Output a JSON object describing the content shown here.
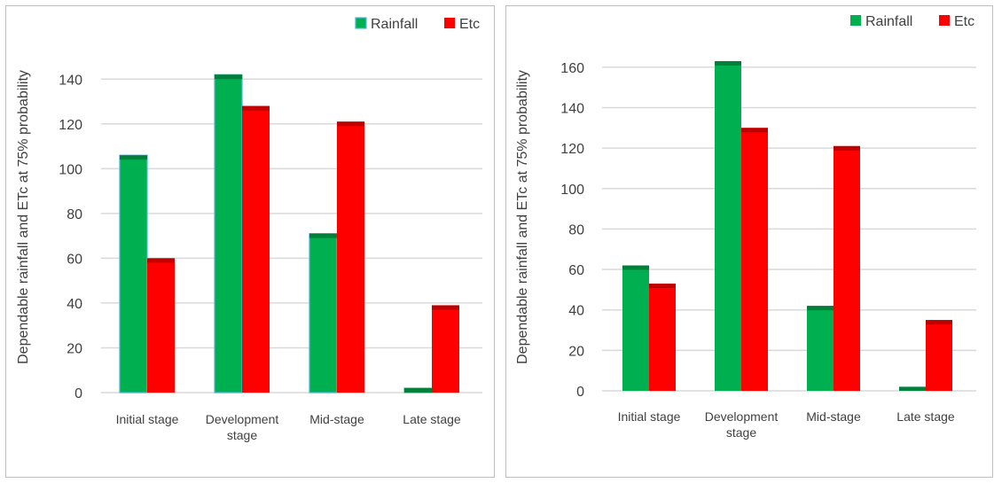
{
  "chart_data": [
    {
      "type": "bar",
      "title": "",
      "ylabel": "Dependable rainfall and ETc at 75% probability",
      "xlabel": "",
      "categories": [
        [
          "Initial stage"
        ],
        [
          "Development",
          "stage"
        ],
        [
          "Mid-stage"
        ],
        [
          "Late stage"
        ]
      ],
      "ylim": [
        0,
        150
      ],
      "yticks": [
        0,
        20,
        40,
        60,
        80,
        100,
        120,
        140
      ],
      "grid": true,
      "legend_position": "top-right",
      "series": [
        {
          "name": "Rainfall",
          "values": [
            106,
            142,
            71,
            2
          ],
          "color": "#00b050",
          "cap_color": "#00803a",
          "outline": "#4fb8d8"
        },
        {
          "name": "Etc",
          "values": [
            60,
            128,
            121,
            39
          ],
          "color": "#ff0000",
          "cap_color": "#c00000"
        }
      ]
    },
    {
      "type": "bar",
      "title": "",
      "ylabel": "Dependable rainfall and ETc at 75% probability",
      "xlabel": "",
      "categories": [
        [
          "Initial stage"
        ],
        [
          "Development",
          "stage"
        ],
        [
          "Mid-stage"
        ],
        [
          "Late stage"
        ]
      ],
      "ylim": [
        0,
        170
      ],
      "yticks": [
        0,
        20,
        40,
        60,
        80,
        100,
        120,
        140,
        160
      ],
      "grid": true,
      "legend_position": "top-right",
      "series": [
        {
          "name": "Rainfall",
          "values": [
            62,
            163,
            42,
            2
          ],
          "color": "#00b050",
          "cap_color": "#00803a"
        },
        {
          "name": "Etc",
          "values": [
            53,
            130,
            121,
            35
          ],
          "color": "#ff0000",
          "cap_color": "#c00000"
        }
      ]
    }
  ]
}
